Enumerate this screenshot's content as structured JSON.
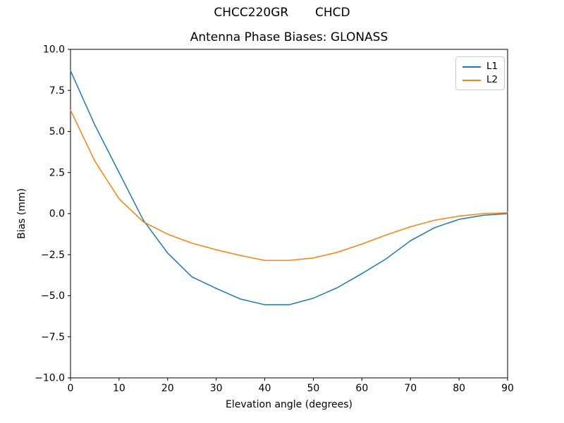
{
  "figure": {
    "suptitle": "CHCC220GR       CHCD",
    "background_color": "#ffffff"
  },
  "chart_data": {
    "type": "line",
    "title": "Antenna Phase Biases: GLONASS",
    "xlabel": "Elevation angle (degrees)",
    "ylabel": "Bias (mm)",
    "xlim": [
      0,
      90
    ],
    "ylim": [
      -10,
      10
    ],
    "grid": false,
    "legend_position": "upper right",
    "x": [
      0,
      5,
      10,
      15,
      20,
      25,
      30,
      35,
      40,
      45,
      50,
      55,
      60,
      65,
      70,
      75,
      80,
      85,
      90
    ],
    "series": [
      {
        "name": "L1",
        "color": "#1f77b4",
        "values": [
          8.7,
          5.4,
          2.5,
          -0.4,
          -2.4,
          -3.85,
          -4.55,
          -5.2,
          -5.55,
          -5.55,
          -5.15,
          -4.5,
          -3.65,
          -2.75,
          -1.65,
          -0.85,
          -0.35,
          -0.1,
          0.0
        ]
      },
      {
        "name": "L2",
        "color": "#ff7f0e",
        "values": [
          6.3,
          3.2,
          0.9,
          -0.5,
          -1.25,
          -1.8,
          -2.2,
          -2.55,
          -2.85,
          -2.85,
          -2.7,
          -2.35,
          -1.85,
          -1.3,
          -0.8,
          -0.4,
          -0.15,
          0.0,
          0.05
        ]
      }
    ],
    "xticks": {
      "values": [
        0,
        10,
        20,
        30,
        40,
        50,
        60,
        70,
        80,
        90
      ],
      "labels": [
        "0",
        "10",
        "20",
        "30",
        "40",
        "50",
        "60",
        "70",
        "80",
        "90"
      ]
    },
    "yticks": {
      "values": [
        10.0,
        7.5,
        5.0,
        2.5,
        0.0,
        -2.5,
        -5.0,
        -7.5,
        -10.0
      ],
      "labels": [
        "10.0",
        "7.5",
        "5.0",
        "2.5",
        "0.0",
        "−2.5",
        "−5.0",
        "−7.5",
        "−10.0"
      ]
    },
    "style": {
      "spine_color": "#000000",
      "legend_border_color": "#cccccc",
      "line_width": 1.5
    }
  }
}
